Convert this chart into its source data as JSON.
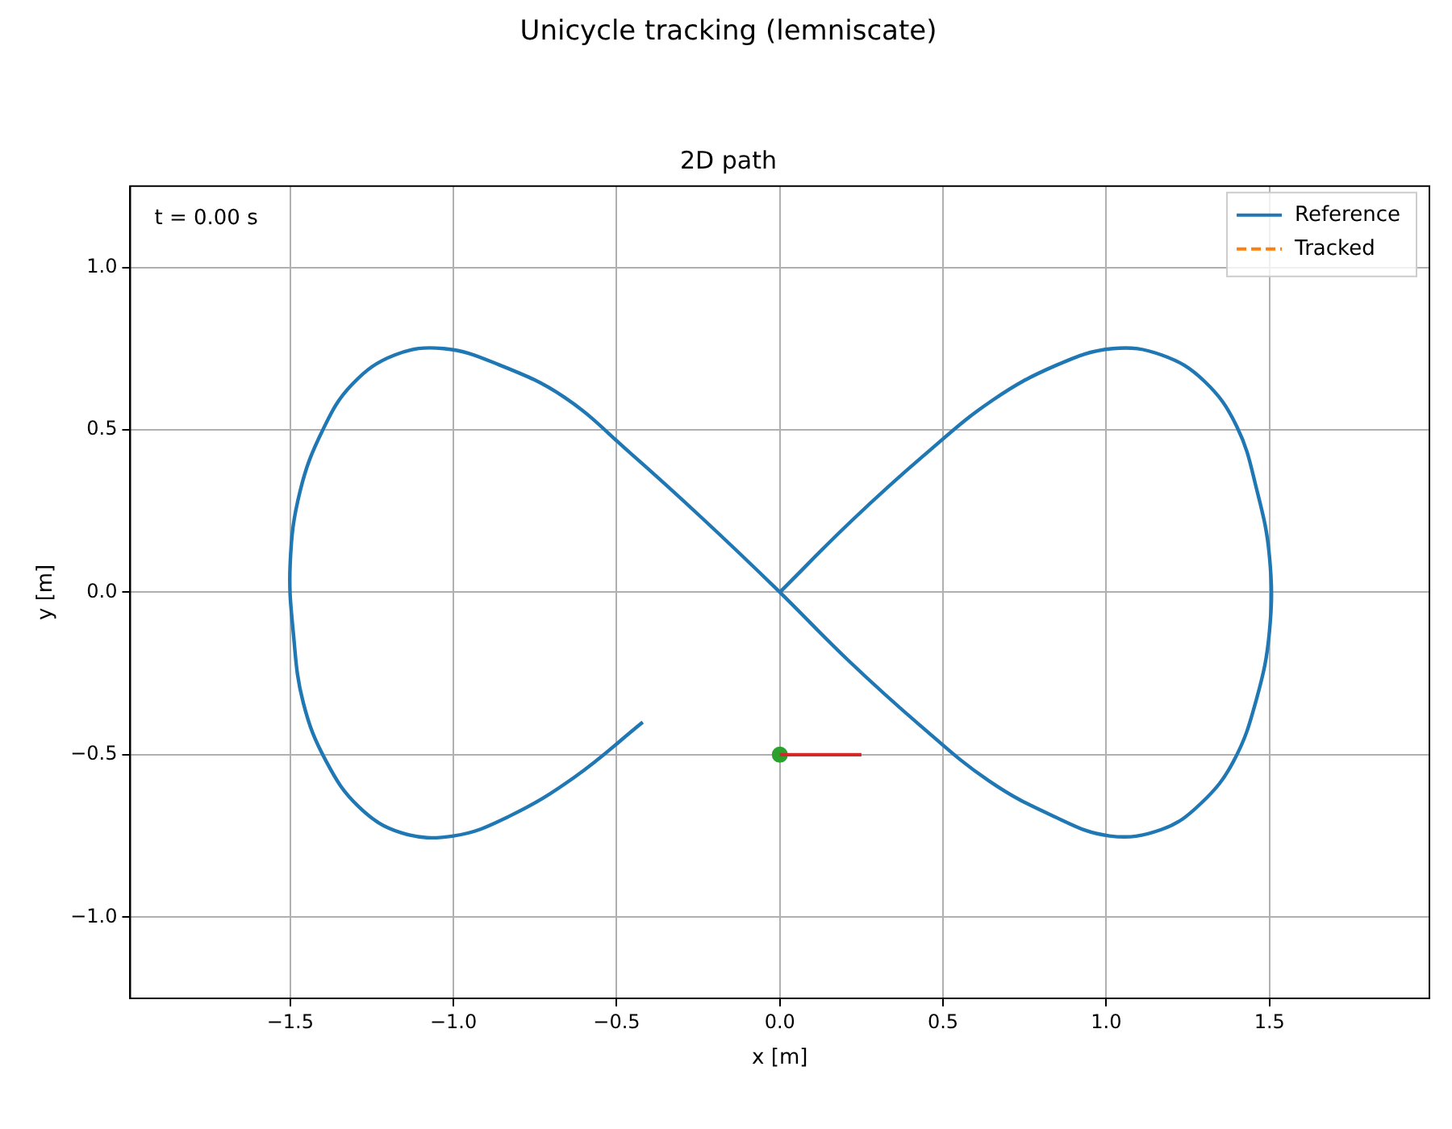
{
  "chart_data": {
    "type": "line",
    "title": "Unicycle tracking (lemniscate)",
    "subtitle": "2D path",
    "xlabel": "x [m]",
    "ylabel": "y [m]",
    "annotations": [
      "t = 0.00 s"
    ],
    "xlim": [
      -1.99,
      1.99
    ],
    "ylim": [
      -1.25,
      1.25
    ],
    "xticks": [
      {
        "value": -1.5,
        "label": "−1.5"
      },
      {
        "value": -1.0,
        "label": "−1.0"
      },
      {
        "value": -0.5,
        "label": "−0.5"
      },
      {
        "value": 0,
        "label": "0.0"
      },
      {
        "value": 0.5,
        "label": "0.5"
      },
      {
        "value": 1.0,
        "label": "1.0"
      },
      {
        "value": 1.5,
        "label": "1.5"
      }
    ],
    "yticks": [
      {
        "value": -1.0,
        "label": "−1.0"
      },
      {
        "value": -0.5,
        "label": "−0.5"
      },
      {
        "value": 0,
        "label": "0.0"
      },
      {
        "value": 0.5,
        "label": "0.5"
      },
      {
        "value": 1.0,
        "label": "1.0"
      }
    ],
    "grid": true,
    "legend": "top right",
    "series": [
      {
        "name": "Reference",
        "color": "#1f77b4",
        "line_style": "solid",
        "x": [
          0,
          0.22,
          0.44,
          0.65,
          0.85,
          1.02,
          1.17,
          1.3,
          1.4,
          1.46,
          1.5,
          1.5,
          1.46,
          1.39,
          1.29,
          1.17,
          1.01,
          0.84,
          0.64,
          0.43,
          0.21,
          -0.01,
          -0.24,
          -0.46,
          -0.66,
          -0.86,
          -1.03,
          -1.18,
          -1.31,
          -1.4,
          -1.47,
          -1.5,
          -1.49,
          -1.46,
          -1.39,
          -1.29,
          -1.16,
          -1.0,
          -0.83,
          -0.63,
          -0.42
        ],
        "values": [
          0,
          0.22,
          0.42,
          0.59,
          0.7,
          0.75,
          0.73,
          0.65,
          0.51,
          0.32,
          0.11,
          -0.12,
          -0.33,
          -0.52,
          -0.65,
          -0.73,
          -0.75,
          -0.69,
          -0.58,
          -0.41,
          -0.21,
          0.01,
          0.23,
          0.43,
          0.6,
          0.7,
          0.75,
          0.73,
          0.64,
          0.5,
          0.31,
          0.09,
          -0.13,
          -0.34,
          -0.52,
          -0.66,
          -0.74,
          -0.75,
          -0.69,
          -0.57,
          -0.4
        ]
      },
      {
        "name": "Tracked",
        "type": "line",
        "color": "#ff7f0e",
        "line_style": "dashed"
      },
      {
        "type": "line",
        "color": "#d62728",
        "line_style": "solid",
        "x": [
          0,
          0.25
        ],
        "values": [
          -0.5,
          -0.5
        ]
      },
      {
        "type": "scatter",
        "color": "#2ca02c",
        "marker": "circle",
        "x": [
          0
        ],
        "values": [
          -0.5
        ]
      }
    ]
  }
}
